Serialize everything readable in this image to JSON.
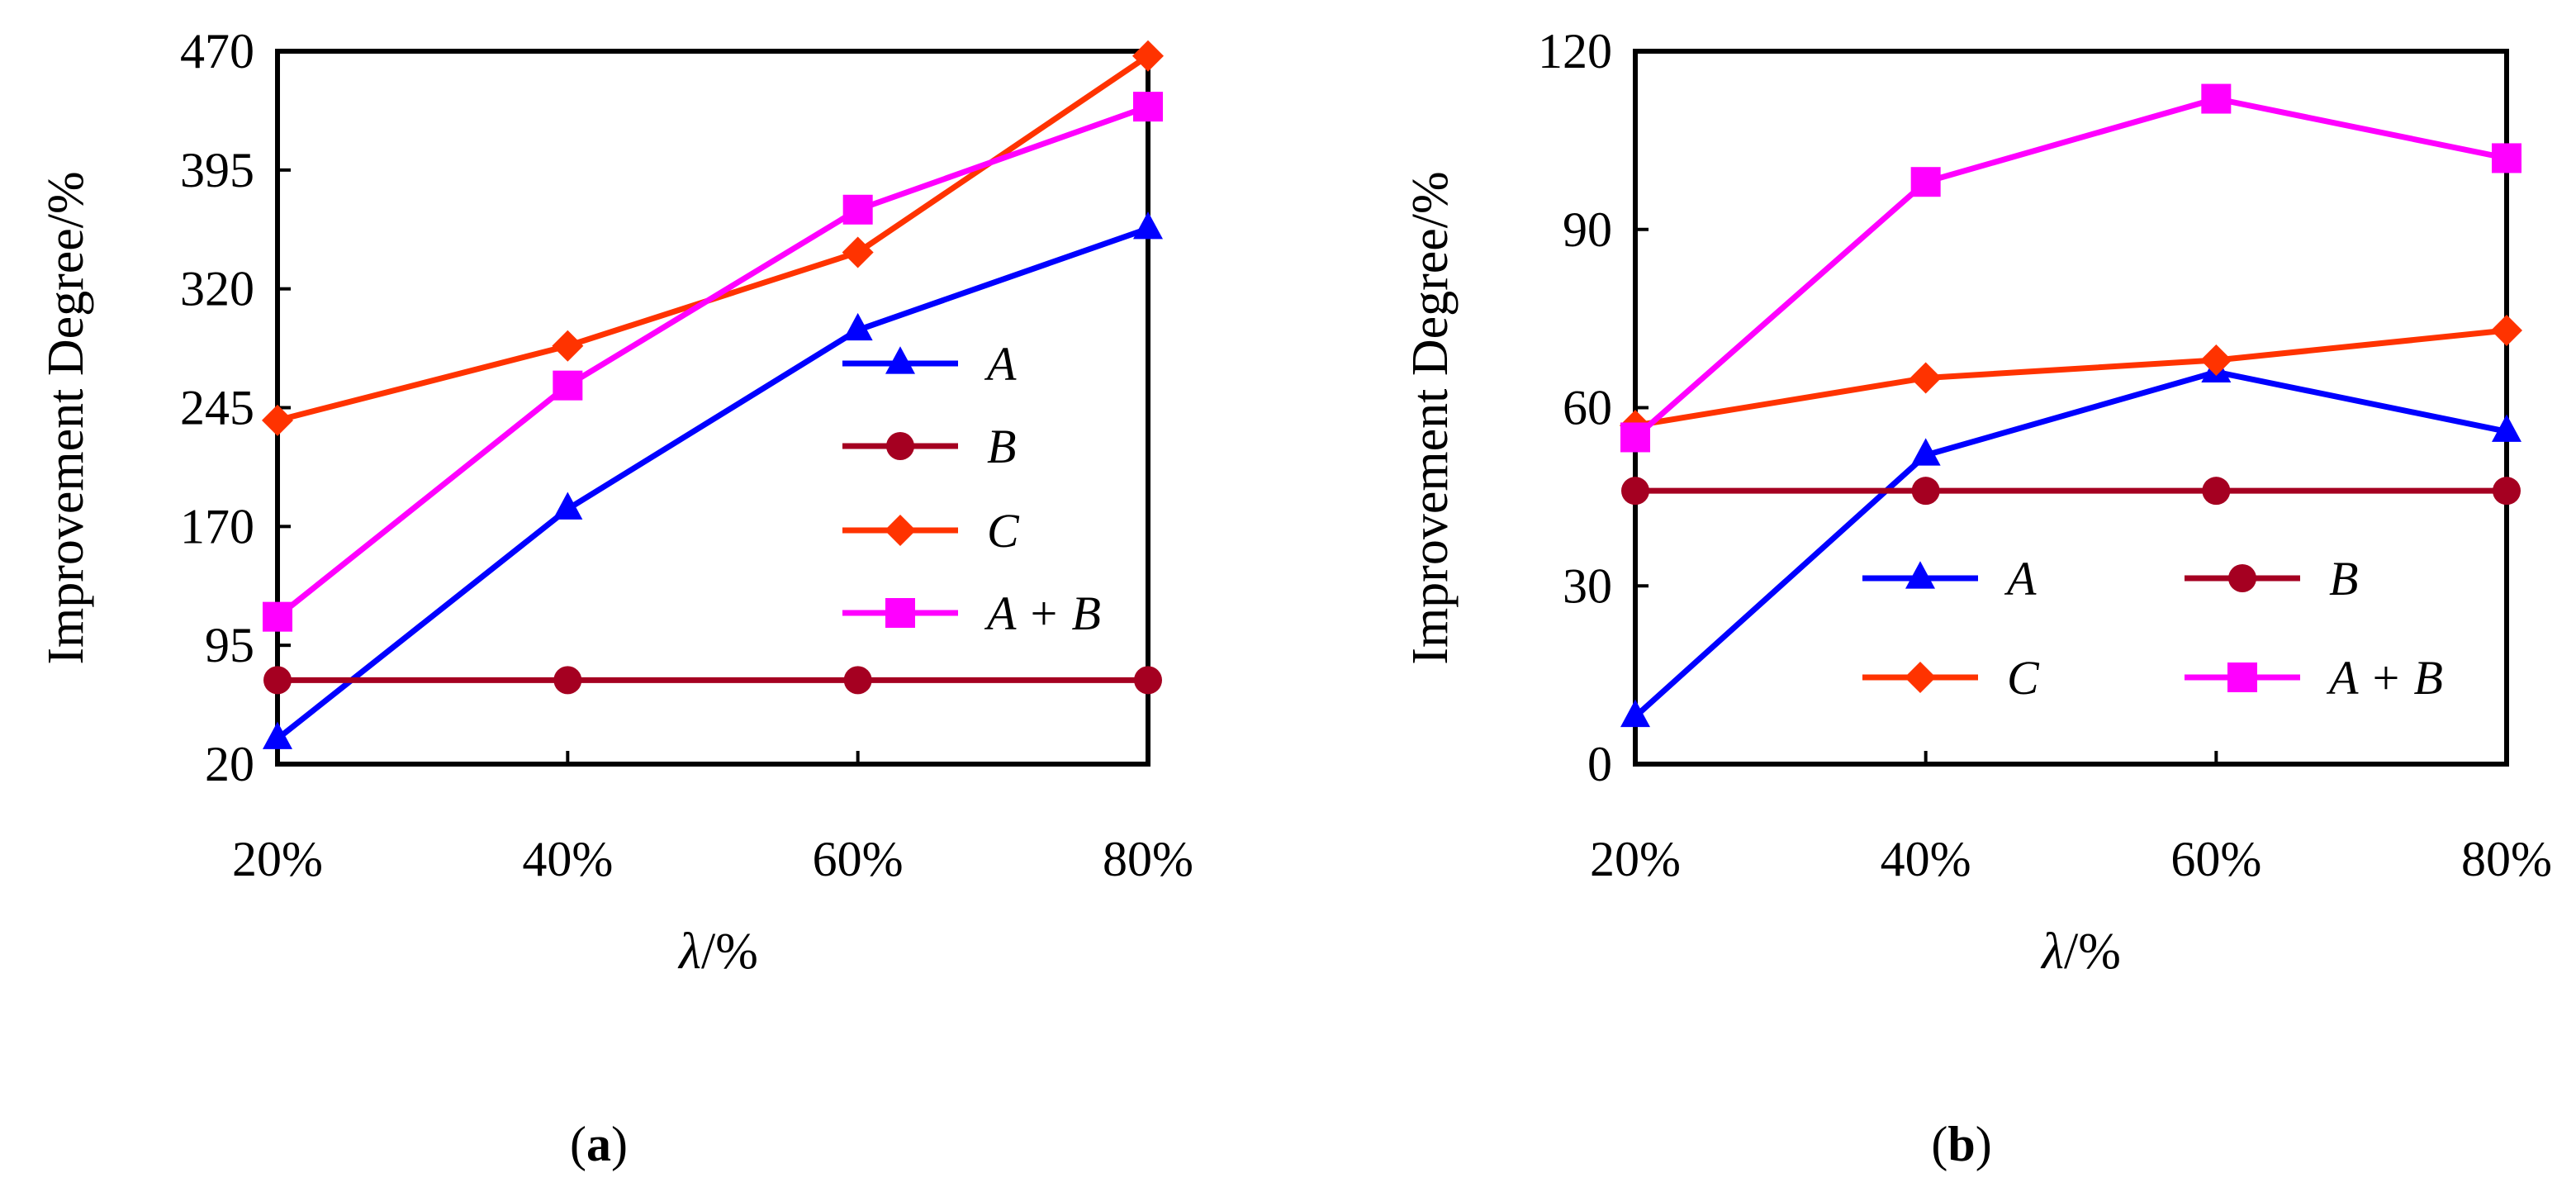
{
  "figure": {
    "panels": [
      "(a)",
      "(b)"
    ],
    "caption_a": {
      "open": "(",
      "letter": "a",
      "close": ")"
    },
    "caption_b": {
      "open": "(",
      "letter": "b",
      "close": ")"
    }
  },
  "chart_data": [
    {
      "id": "a",
      "type": "line",
      "xlabel": "λ/%",
      "ylabel": "Improvement Degree/%",
      "categories": [
        "20%",
        "40%",
        "60%",
        "80%"
      ],
      "yticks": [
        20,
        95,
        170,
        245,
        320,
        395,
        470
      ],
      "ylim": [
        20,
        470
      ],
      "grid": false,
      "legend_position": "right-center",
      "series": [
        {
          "name": "A",
          "color": "#0000ff",
          "marker": "triangle",
          "values": [
            36,
            181,
            294,
            358
          ]
        },
        {
          "name": "B",
          "color": "#a50021",
          "marker": "circle",
          "values": [
            73,
            73,
            73,
            73
          ]
        },
        {
          "name": "C",
          "color": "#ff3300",
          "marker": "diamond",
          "values": [
            237,
            284,
            343,
            467
          ]
        },
        {
          "name": "A + B",
          "color": "#ff00ff",
          "marker": "square",
          "values": [
            113,
            259,
            370,
            435
          ]
        }
      ]
    },
    {
      "id": "b",
      "type": "line",
      "xlabel": "λ/%",
      "ylabel": "Improvement Degree/%",
      "categories": [
        "20%",
        "40%",
        "60%",
        "80%"
      ],
      "yticks": [
        0,
        30,
        60,
        90,
        120
      ],
      "ylim": [
        0,
        120
      ],
      "grid": false,
      "legend_position": "bottom-right",
      "series": [
        {
          "name": "A",
          "color": "#0000ff",
          "marker": "triangle",
          "values": [
            8,
            52,
            66,
            56
          ]
        },
        {
          "name": "B",
          "color": "#a50021",
          "marker": "circle",
          "values": [
            46,
            46,
            46,
            46
          ]
        },
        {
          "name": "C",
          "color": "#ff3300",
          "marker": "diamond",
          "values": [
            57,
            65,
            68,
            73
          ]
        },
        {
          "name": "A + B",
          "color": "#ff00ff",
          "marker": "square",
          "values": [
            55,
            98,
            112,
            102
          ]
        }
      ]
    }
  ]
}
